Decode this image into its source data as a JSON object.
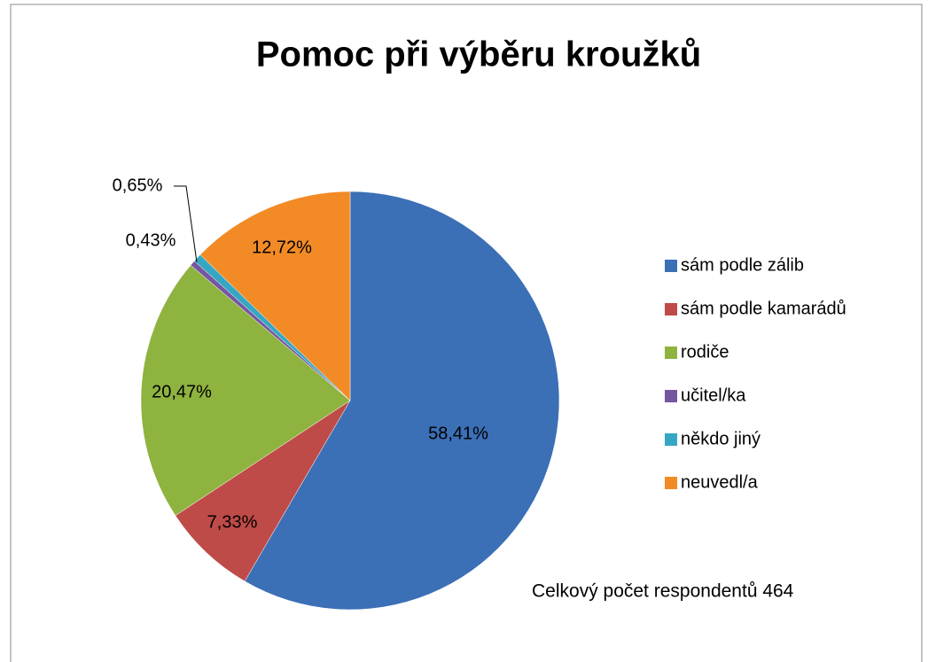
{
  "chart_data": {
    "type": "pie",
    "title": "Pomoc při výběru kroužků",
    "categories": [
      "sám podle zálib",
      "sám podle kamarádů",
      "rodiče",
      "učitel/ka",
      "někdo jiný",
      "neuvedl/a"
    ],
    "values": [
      58.41,
      7.33,
      20.47,
      0.43,
      0.65,
      12.72
    ],
    "value_labels": [
      "58,41%",
      "7,33%",
      "20,47%",
      "0,43%",
      "0,65%",
      "12,72%"
    ],
    "colors": [
      "#3b6fb6",
      "#be4b48",
      "#8fb33f",
      "#7557a0",
      "#35a7c3",
      "#f28b26"
    ],
    "annotation": "Celkový počet respondentů 464",
    "legend": "right"
  }
}
